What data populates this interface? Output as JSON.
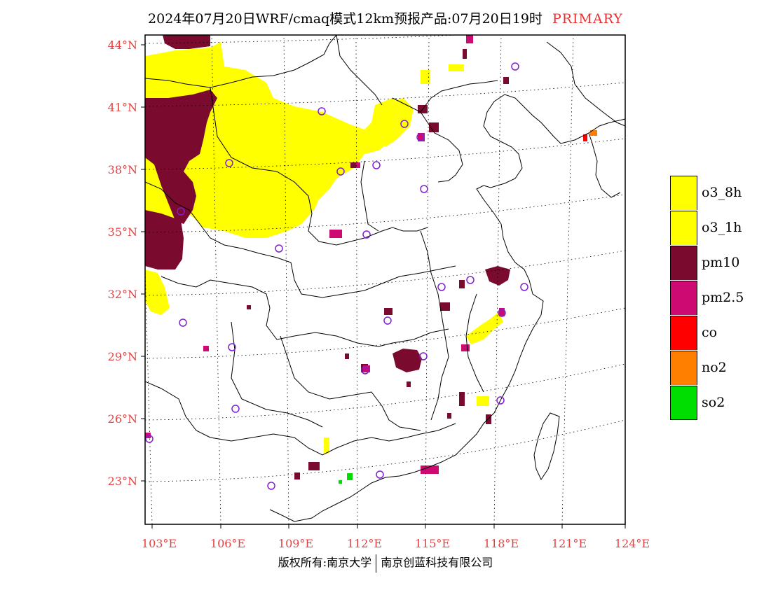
{
  "title": {
    "main": "2024年07月20日WRF/cmaq模式12km预报产品:07月20日19时",
    "tag": "PRIMARY"
  },
  "axes": {
    "lat_labels": [
      "44°N",
      "41°N",
      "38°N",
      "35°N",
      "32°N",
      "29°N",
      "26°N",
      "23°N"
    ],
    "lon_labels": [
      "103°E",
      "106°E",
      "109°E",
      "112°E",
      "115°E",
      "118°E",
      "121°E",
      "124°E"
    ]
  },
  "legend": [
    {
      "label": "o3_8h",
      "color": "#ffff00"
    },
    {
      "label": "o3_1h",
      "color": "#ffff00"
    },
    {
      "label": "pm10",
      "color": "#7a0a2e"
    },
    {
      "label": "pm2.5",
      "color": "#cc0a72"
    },
    {
      "label": "co",
      "color": "#ff0000"
    },
    {
      "label": "no2",
      "color": "#ff7f00"
    },
    {
      "label": "so2",
      "color": "#00dd00"
    }
  ],
  "copyright": {
    "left": "版权所有:南京大学",
    "right": "南京创蓝科技有限公司"
  }
}
